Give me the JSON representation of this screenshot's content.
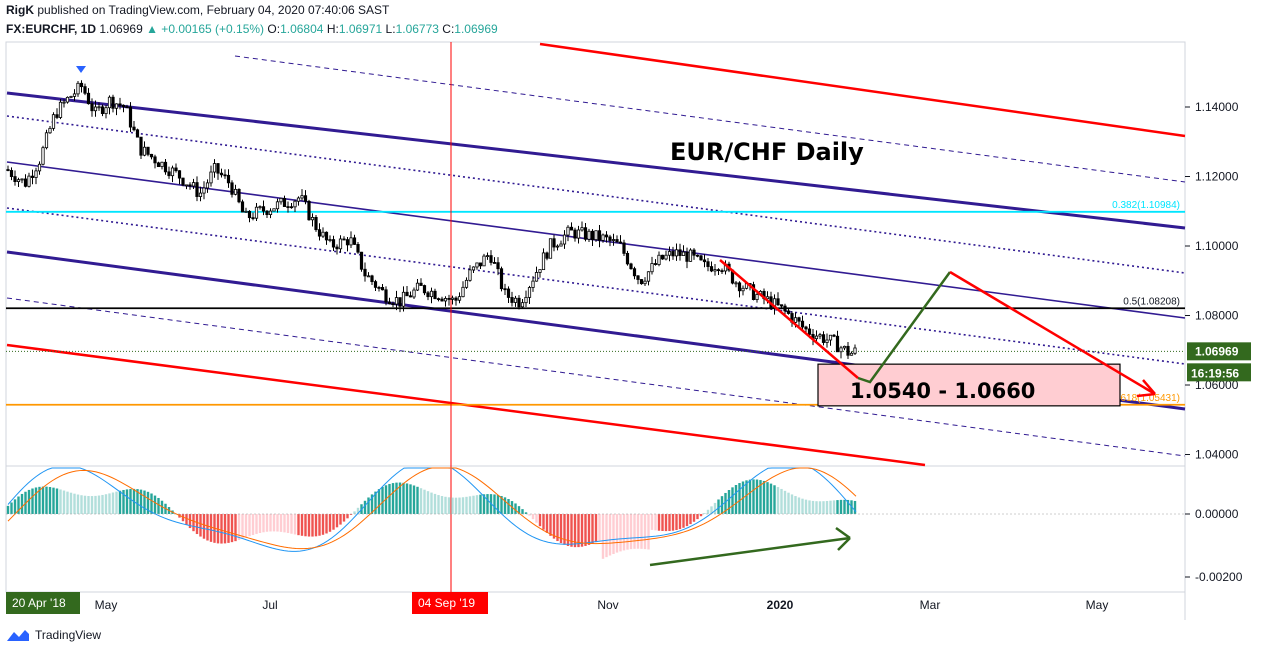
{
  "header": {
    "publisher": "RigK",
    "published_text": "published on TradingView.com, February 04, 2020 07:40:06 SAST",
    "symbol": "FX:EURCHF, 1D",
    "last": "1.06969",
    "change": "▲ +0.00165 (+0.15%)",
    "o_label": "O:",
    "o_val": "1.06804",
    "h_label": "H:",
    "h_val": "1.06971",
    "l_label": "L:",
    "l_val": "1.06773",
    "c_label": "C:",
    "c_val": "1.06969"
  },
  "footer": {
    "brand": "TradingView"
  },
  "chart_data": {
    "type": "candlestick",
    "title": "EUR/CHF Daily",
    "price_axis": {
      "ticks": [
        "1.14000",
        "1.12000",
        "1.10000",
        "1.08000",
        "1.06000",
        "1.04000"
      ],
      "range": [
        1.036,
        1.152
      ],
      "last_price_label": "1.06969",
      "countdown_label": "16:19:56"
    },
    "time_axis": {
      "labels": [
        "May",
        "Jul",
        "Nov",
        "2020",
        "Mar",
        "May"
      ],
      "highlight_start": "20 Apr '18",
      "highlight_marker": "04 Sep '19"
    },
    "levels": [
      {
        "name": "fib-0.382",
        "label": "0.382(1.10984)",
        "value": 1.10984,
        "color": "#00e5ff"
      },
      {
        "name": "fib-0.5",
        "label": "0.5(1.08208)",
        "value": 1.08208,
        "color": "#000000"
      },
      {
        "name": "fib-0.618",
        "label": "0.618(1.05431)",
        "value": 1.05431,
        "color": "#ff9800"
      }
    ],
    "target_zone": {
      "label": "1.0540 - 1.0660",
      "low": 1.054,
      "high": 1.066
    },
    "macd_axis": {
      "ticks": [
        "0.00000",
        "-0.00200"
      ]
    },
    "colors": {
      "up": "#26a69a",
      "down": "#ef5350",
      "candle": "#000000",
      "channel": "#311b92",
      "red_line": "#ff0000",
      "arrow_green": "#33691e",
      "fib_cyan": "#00e5ff",
      "fib_orange": "#ff9800",
      "zone_fill": "#ffcdd2"
    }
  }
}
